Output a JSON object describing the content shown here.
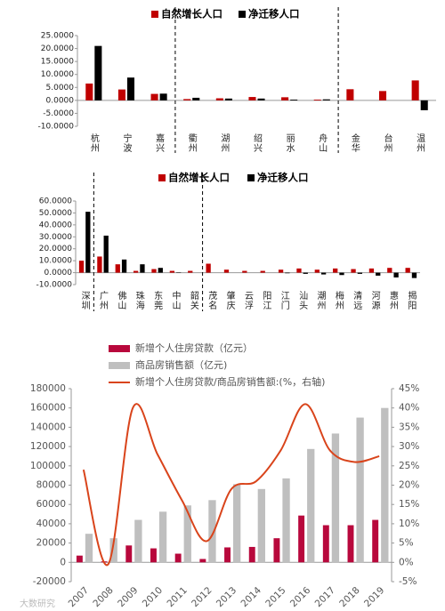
{
  "chart_data": [
    {
      "type": "bar",
      "categories": [
        "杭州",
        "宁波",
        "嘉兴",
        "衢州",
        "湖州",
        "绍兴",
        "丽水",
        "舟山",
        "金华",
        "台州",
        "温州"
      ],
      "series": [
        {
          "name": "自然增长人口",
          "color": "#c00000",
          "values": [
            6.5,
            4.2,
            2.5,
            0.5,
            0.8,
            1.3,
            1.2,
            0.3,
            4.3,
            3.6,
            7.7
          ]
        },
        {
          "name": "净迁移人口",
          "color": "#000000",
          "values": [
            21,
            8.8,
            2.6,
            1.0,
            0.7,
            0.7,
            0.3,
            0.4,
            null,
            null,
            -3.8
          ]
        }
      ],
      "ylim": [
        -10,
        25
      ],
      "yticks": [
        {
          "value": -10,
          "label": "-10.0000"
        },
        {
          "value": -5,
          "label": "-5.0000"
        },
        {
          "value": 0,
          "label": "0.0000"
        },
        {
          "value": 5,
          "label": "5.0000"
        },
        {
          "value": 10,
          "label": "10.0000"
        },
        {
          "value": 15,
          "label": "15.0000"
        },
        {
          "value": 20,
          "label": "20.0000"
        },
        {
          "value": 25,
          "label": "25.0000"
        }
      ],
      "legend": "top"
    },
    {
      "type": "bar",
      "categories": [
        "深圳",
        "广州",
        "佛山",
        "珠海",
        "东莞",
        "中山",
        "韶关",
        "茂名",
        "肇庆",
        "云浮",
        "阳江",
        "江门",
        "汕头",
        "潮州",
        "梅州",
        "清远",
        "河源",
        "惠州",
        "揭阳"
      ],
      "series": [
        {
          "name": "自然增长人口",
          "color": "#c00000",
          "values": [
            10,
            13.5,
            7,
            1.5,
            3,
            1.5,
            1.5,
            7.5,
            2.5,
            1.5,
            1.5,
            2.5,
            3.5,
            2.5,
            3.5,
            3,
            3.5,
            4,
            4
          ]
        },
        {
          "name": "净迁移人口",
          "color": "#000000",
          "values": [
            51,
            31,
            11,
            7,
            4,
            0.3,
            null,
            null,
            null,
            null,
            null,
            -0.5,
            -1,
            -1.5,
            -2,
            -1,
            -2.5,
            -4,
            -4.5
          ]
        }
      ],
      "ylim": [
        -10,
        60
      ],
      "yticks": [
        {
          "value": -10,
          "label": "-10.0000"
        },
        {
          "value": 0,
          "label": "0.0000"
        },
        {
          "value": 10,
          "label": "10.0000"
        },
        {
          "value": 20,
          "label": "20.0000"
        },
        {
          "value": 30,
          "label": "30.0000"
        },
        {
          "value": 40,
          "label": "40.0000"
        },
        {
          "value": 50,
          "label": "50.0000"
        },
        {
          "value": 60,
          "label": "60.0000"
        }
      ],
      "legend": "top"
    },
    {
      "type": "combo",
      "categories": [
        "2007",
        "2008",
        "2009",
        "2010",
        "2011",
        "2012",
        "2013",
        "2014",
        "2015",
        "2016",
        "2017",
        "2018",
        "2019"
      ],
      "series": [
        {
          "name": "新增个人住房贷款（亿元）",
          "type": "bar",
          "color": "#b8083c",
          "values": [
            7000,
            1000,
            17500,
            14500,
            9000,
            3500,
            15500,
            16000,
            25000,
            48500,
            38500,
            38500,
            44000
          ]
        },
        {
          "name": "商品房销售额（亿元)",
          "type": "bar",
          "color": "#bfbfbf",
          "values": [
            29600,
            25000,
            44000,
            52500,
            59000,
            64500,
            81000,
            76000,
            87000,
            117500,
            133500,
            150000,
            160000
          ]
        },
        {
          "name": "新增个人住房贷款/商品房销售额:(%，右轴)",
          "type": "line",
          "axis": "y2",
          "color": "#d9441b",
          "values": [
            24,
            -0.5,
            40,
            28,
            16,
            5.5,
            19,
            21,
            29,
            41,
            29,
            26,
            27.5
          ]
        }
      ],
      "ylim": [
        -20000,
        180000
      ],
      "yticks": [
        -20000,
        0,
        20000,
        40000,
        60000,
        80000,
        100000,
        120000,
        140000,
        160000,
        180000
      ],
      "y2lim": [
        -5,
        45
      ],
      "y2ticks": [
        {
          "value": -5,
          "label": "-5%"
        },
        {
          "value": 0,
          "label": "0%"
        },
        {
          "value": 5,
          "label": "5%"
        },
        {
          "value": 10,
          "label": "10%"
        },
        {
          "value": 15,
          "label": "15%"
        },
        {
          "value": 20,
          "label": "20%"
        },
        {
          "value": 25,
          "label": "25%"
        },
        {
          "value": 30,
          "label": "30%"
        },
        {
          "value": 35,
          "label": "35%"
        },
        {
          "value": 40,
          "label": "40%"
        },
        {
          "value": 45,
          "label": "45%"
        }
      ],
      "legend": "top",
      "watermark": "大数研究"
    }
  ]
}
